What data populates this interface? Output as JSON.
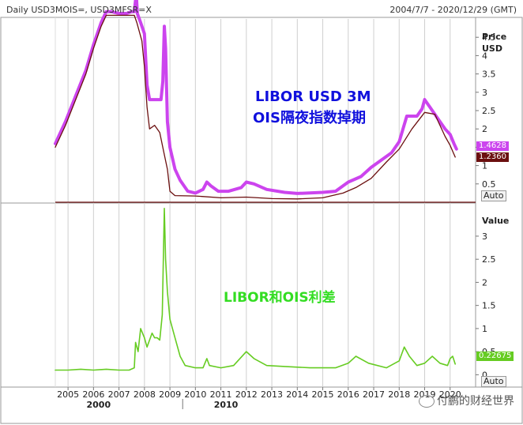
{
  "header": {
    "title": "Daily USD3MOIS=, USD3MFSR=X",
    "date_range": "2004/7/7 - 2020/12/29 (GMT)"
  },
  "annotations": {
    "top_line1": "LIBOR USD 3M",
    "top_line2": "OIS隔夜指数掉期",
    "bottom": "LIBOR和OIS利差"
  },
  "axis": {
    "top_unit_1": "Price",
    "top_unit_2": "USD",
    "bottom_unit": "Value",
    "auto_label": "Auto",
    "decade_labels": [
      "2000",
      "2010"
    ]
  },
  "badges": {
    "libor_value": "1.4628",
    "ois_value": "1.2360",
    "spread_value": "0.22675"
  },
  "watermark": "付鹏的财经世界",
  "colors": {
    "libor": "#cc44ee",
    "ois": "#6b0f0f",
    "spread": "#66cc22",
    "grid": "#cfcfcf",
    "frame": "#9a9a9a"
  },
  "chart_data": [
    {
      "type": "line",
      "title": "",
      "ylabel": "Price USD",
      "ylim": [
        0,
        5
      ],
      "yticks": [
        0.5,
        1,
        1.5,
        2,
        2.5,
        3,
        3.5,
        4,
        4.5
      ],
      "xticks": [
        2005,
        2006,
        2007,
        2008,
        2009,
        2010,
        2011,
        2012,
        2013,
        2014,
        2015,
        2016,
        2017,
        2018,
        2019,
        2020
      ],
      "xlim": [
        2004.5,
        2021
      ],
      "series": [
        {
          "name": "LIBOR USD 3M",
          "points": [
            [
              2004.5,
              1.6
            ],
            [
              2004.9,
              2.2
            ],
            [
              2005.3,
              2.9
            ],
            [
              2005.7,
              3.6
            ],
            [
              2006.0,
              4.3
            ],
            [
              2006.3,
              4.9
            ],
            [
              2006.5,
              5.2
            ],
            [
              2006.7,
              5.2
            ],
            [
              2007.0,
              5.15
            ],
            [
              2007.3,
              5.15
            ],
            [
              2007.5,
              5.2
            ],
            [
              2007.6,
              5.2
            ],
            [
              2007.68,
              5.7
            ],
            [
              2007.72,
              5.15
            ],
            [
              2007.85,
              4.9
            ],
            [
              2008.0,
              4.6
            ],
            [
              2008.1,
              3.2
            ],
            [
              2008.2,
              2.8
            ],
            [
              2008.5,
              2.8
            ],
            [
              2008.65,
              2.8
            ],
            [
              2008.72,
              3.3
            ],
            [
              2008.78,
              4.8
            ],
            [
              2008.83,
              4.2
            ],
            [
              2008.9,
              2.2
            ],
            [
              2009.0,
              1.5
            ],
            [
              2009.2,
              0.9
            ],
            [
              2009.4,
              0.6
            ],
            [
              2009.7,
              0.3
            ],
            [
              2010.0,
              0.25
            ],
            [
              2010.3,
              0.35
            ],
            [
              2010.45,
              0.55
            ],
            [
              2010.6,
              0.45
            ],
            [
              2010.9,
              0.3
            ],
            [
              2011.3,
              0.3
            ],
            [
              2011.8,
              0.4
            ],
            [
              2012.0,
              0.55
            ],
            [
              2012.3,
              0.5
            ],
            [
              2012.8,
              0.35
            ],
            [
              2013.5,
              0.27
            ],
            [
              2014.0,
              0.24
            ],
            [
              2015.0,
              0.27
            ],
            [
              2015.5,
              0.3
            ],
            [
              2016.0,
              0.55
            ],
            [
              2016.5,
              0.7
            ],
            [
              2016.9,
              0.95
            ],
            [
              2017.3,
              1.15
            ],
            [
              2017.7,
              1.35
            ],
            [
              2018.0,
              1.65
            ],
            [
              2018.3,
              2.35
            ],
            [
              2018.7,
              2.35
            ],
            [
              2018.9,
              2.55
            ],
            [
              2019.0,
              2.8
            ],
            [
              2019.2,
              2.6
            ],
            [
              2019.5,
              2.3
            ],
            [
              2019.8,
              2.0
            ],
            [
              2020.0,
              1.85
            ],
            [
              2020.15,
              1.6
            ],
            [
              2020.25,
              1.45
            ]
          ]
        },
        {
          "name": "OIS隔夜指数掉期",
          "points": [
            [
              2004.5,
              1.5
            ],
            [
              2004.9,
              2.1
            ],
            [
              2005.3,
              2.8
            ],
            [
              2005.7,
              3.5
            ],
            [
              2006.0,
              4.2
            ],
            [
              2006.3,
              4.8
            ],
            [
              2006.5,
              5.1
            ],
            [
              2006.8,
              5.1
            ],
            [
              2007.2,
              5.1
            ],
            [
              2007.6,
              5.1
            ],
            [
              2007.7,
              4.9
            ],
            [
              2007.9,
              4.4
            ],
            [
              2008.0,
              3.7
            ],
            [
              2008.1,
              2.6
            ],
            [
              2008.2,
              2.0
            ],
            [
              2008.4,
              2.1
            ],
            [
              2008.6,
              1.9
            ],
            [
              2008.75,
              1.4
            ],
            [
              2008.9,
              0.9
            ],
            [
              2009.0,
              0.3
            ],
            [
              2009.2,
              0.18
            ],
            [
              2010.0,
              0.17
            ],
            [
              2011.0,
              0.12
            ],
            [
              2012.0,
              0.14
            ],
            [
              2013.0,
              0.1
            ],
            [
              2014.0,
              0.09
            ],
            [
              2015.0,
              0.12
            ],
            [
              2015.8,
              0.25
            ],
            [
              2016.3,
              0.4
            ],
            [
              2016.9,
              0.65
            ],
            [
              2017.5,
              1.1
            ],
            [
              2018.0,
              1.45
            ],
            [
              2018.5,
              2.0
            ],
            [
              2019.0,
              2.45
            ],
            [
              2019.4,
              2.4
            ],
            [
              2019.8,
              1.8
            ],
            [
              2020.0,
              1.55
            ],
            [
              2020.2,
              1.23
            ]
          ]
        }
      ]
    },
    {
      "type": "line",
      "title": "",
      "ylabel": "Value",
      "ylim": [
        -0.25,
        3.7
      ],
      "yticks": [
        0,
        0.5,
        1,
        1.5,
        2,
        2.5,
        3
      ],
      "xlim": [
        2004.5,
        2021
      ],
      "series": [
        {
          "name": "LIBOR和OIS利差",
          "points": [
            [
              2004.5,
              0.1
            ],
            [
              2005.0,
              0.1
            ],
            [
              2005.5,
              0.12
            ],
            [
              2006.0,
              0.1
            ],
            [
              2006.5,
              0.12
            ],
            [
              2007.0,
              0.1
            ],
            [
              2007.4,
              0.1
            ],
            [
              2007.6,
              0.15
            ],
            [
              2007.65,
              0.7
            ],
            [
              2007.75,
              0.5
            ],
            [
              2007.85,
              1.0
            ],
            [
              2008.0,
              0.8
            ],
            [
              2008.1,
              0.6
            ],
            [
              2008.2,
              0.75
            ],
            [
              2008.3,
              0.9
            ],
            [
              2008.4,
              0.8
            ],
            [
              2008.5,
              0.8
            ],
            [
              2008.6,
              0.75
            ],
            [
              2008.7,
              1.3
            ],
            [
              2008.78,
              3.6
            ],
            [
              2008.83,
              2.5
            ],
            [
              2008.9,
              1.8
            ],
            [
              2009.0,
              1.2
            ],
            [
              2009.2,
              0.8
            ],
            [
              2009.4,
              0.4
            ],
            [
              2009.6,
              0.2
            ],
            [
              2010.0,
              0.15
            ],
            [
              2010.3,
              0.15
            ],
            [
              2010.45,
              0.35
            ],
            [
              2010.55,
              0.2
            ],
            [
              2011.0,
              0.15
            ],
            [
              2011.5,
              0.2
            ],
            [
              2012.0,
              0.5
            ],
            [
              2012.3,
              0.35
            ],
            [
              2012.8,
              0.2
            ],
            [
              2013.5,
              0.18
            ],
            [
              2014.5,
              0.15
            ],
            [
              2015.5,
              0.15
            ],
            [
              2016.0,
              0.25
            ],
            [
              2016.3,
              0.4
            ],
            [
              2016.8,
              0.25
            ],
            [
              2017.5,
              0.15
            ],
            [
              2018.0,
              0.3
            ],
            [
              2018.2,
              0.6
            ],
            [
              2018.4,
              0.4
            ],
            [
              2018.7,
              0.2
            ],
            [
              2019.0,
              0.25
            ],
            [
              2019.3,
              0.4
            ],
            [
              2019.6,
              0.25
            ],
            [
              2019.9,
              0.2
            ],
            [
              2020.0,
              0.35
            ],
            [
              2020.1,
              0.4
            ],
            [
              2020.2,
              0.23
            ]
          ]
        }
      ]
    }
  ]
}
